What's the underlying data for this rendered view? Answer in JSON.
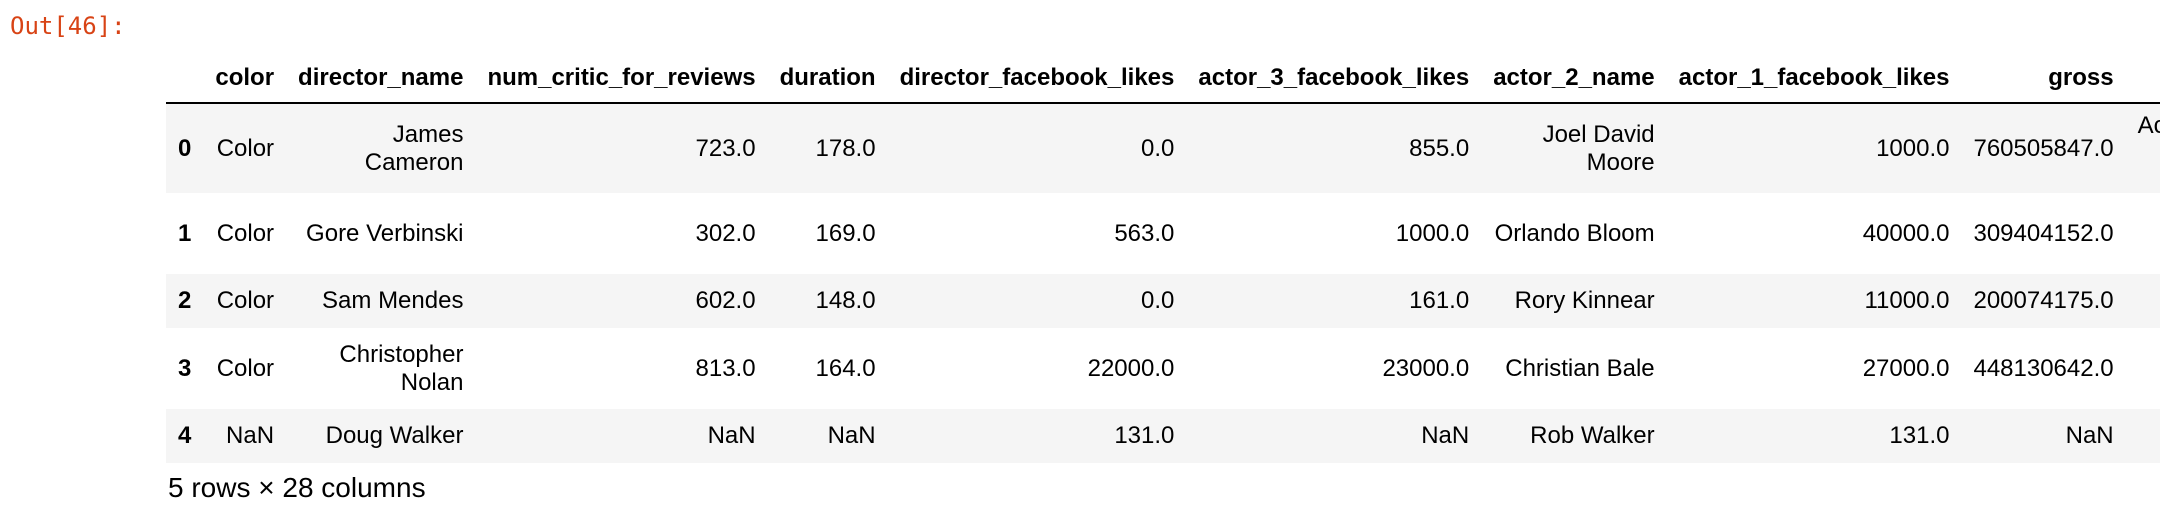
{
  "prompt": "Out[46]:",
  "table": {
    "columns": [
      "",
      "color",
      "director_name",
      "num_critic_for_reviews",
      "duration",
      "director_facebook_likes",
      "actor_3_facebook_likes",
      "actor_2_name",
      "actor_1_facebook_likes",
      "gross",
      "Ac"
    ],
    "rows": [
      {
        "index": "0",
        "cells": [
          "Color",
          "James Cameron",
          "723.0",
          "178.0",
          "0.0",
          "855.0",
          "Joel David Moore",
          "1000.0",
          "760505847.0",
          "Ac"
        ]
      },
      {
        "index": "1",
        "cells": [
          "Color",
          "Gore Verbinski",
          "302.0",
          "169.0",
          "563.0",
          "1000.0",
          "Orlando Bloom",
          "40000.0",
          "309404152.0",
          ""
        ]
      },
      {
        "index": "2",
        "cells": [
          "Color",
          "Sam Mendes",
          "602.0",
          "148.0",
          "0.0",
          "161.0",
          "Rory Kinnear",
          "11000.0",
          "200074175.0",
          ""
        ]
      },
      {
        "index": "3",
        "cells": [
          "Color",
          "Christopher Nolan",
          "813.0",
          "164.0",
          "22000.0",
          "23000.0",
          "Christian Bale",
          "27000.0",
          "448130642.0",
          ""
        ]
      },
      {
        "index": "4",
        "cells": [
          "NaN",
          "Doug Walker",
          "NaN",
          "NaN",
          "131.0",
          "NaN",
          "Rob Walker",
          "131.0",
          "NaN",
          ""
        ]
      }
    ]
  },
  "footer": "5 rows × 28 columns",
  "colors": {
    "prompt": "#d84315",
    "stripe": "#f5f5f5",
    "rule": "#000000"
  }
}
